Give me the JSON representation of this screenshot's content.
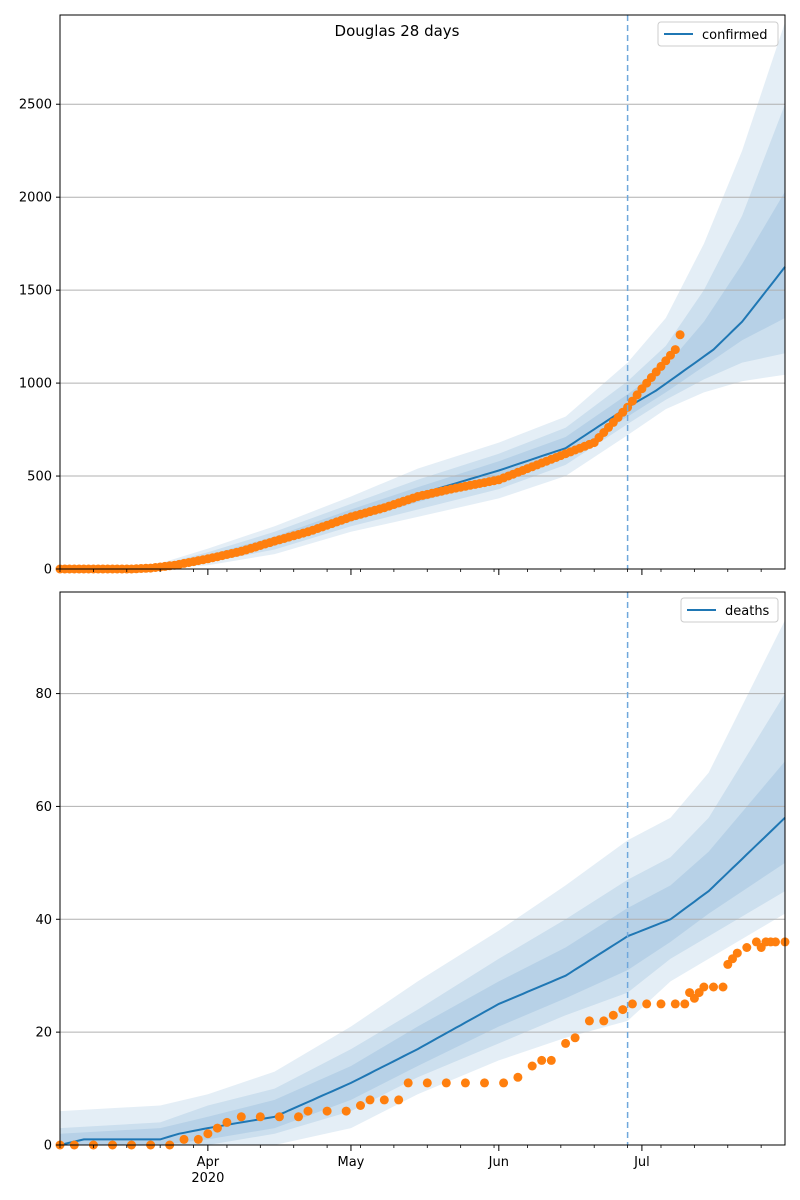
{
  "figure": {
    "title": "Douglas 28 days"
  },
  "colors": {
    "model": "#1f77b4",
    "observed": "#ff7f0e",
    "band": "#1f77b4",
    "grid": "#b0b0b0",
    "vline": "#6fa8dc"
  },
  "x_axis": {
    "start": "2020-03-01",
    "end": "2020-07-31",
    "major_ticks": [
      {
        "date": "2020-04-01",
        "label": "Apr",
        "sublabel": "2020"
      },
      {
        "date": "2020-05-01",
        "label": "May",
        "sublabel": ""
      },
      {
        "date": "2020-06-01",
        "label": "Jun",
        "sublabel": ""
      },
      {
        "date": "2020-07-01",
        "label": "Jul",
        "sublabel": ""
      }
    ],
    "forecast_start": "2020-06-28"
  },
  "chart_data": [
    {
      "type": "line",
      "panel": "top",
      "title": "Douglas 28 days",
      "legend": "confirmed",
      "legend_position": "top-right",
      "grid": "horizontal",
      "ylim": [
        0,
        2980
      ],
      "yticks": [
        0,
        500,
        1000,
        1500,
        2000,
        2500
      ],
      "model_line": [
        [
          "2020-03-01",
          0
        ],
        [
          "2020-03-15",
          2
        ],
        [
          "2020-03-22",
          15
        ],
        [
          "2020-04-01",
          60
        ],
        [
          "2020-04-15",
          150
        ],
        [
          "2020-05-01",
          290
        ],
        [
          "2020-05-15",
          400
        ],
        [
          "2020-06-01",
          530
        ],
        [
          "2020-06-15",
          650
        ],
        [
          "2020-06-28",
          870
        ],
        [
          "2020-07-04",
          960
        ],
        [
          "2020-07-10",
          1070
        ],
        [
          "2020-07-16",
          1180
        ],
        [
          "2020-07-22",
          1330
        ],
        [
          "2020-07-31",
          1625
        ]
      ],
      "bands": [
        {
          "name": "outer",
          "upper": [
            [
              "2020-03-01",
              5
            ],
            [
              "2020-03-20",
              15
            ],
            [
              "2020-04-01",
              110
            ],
            [
              "2020-04-15",
              230
            ],
            [
              "2020-05-01",
              390
            ],
            [
              "2020-05-15",
              540
            ],
            [
              "2020-06-01",
              680
            ],
            [
              "2020-06-15",
              820
            ],
            [
              "2020-06-28",
              1110
            ],
            [
              "2020-07-06",
              1350
            ],
            [
              "2020-07-14",
              1750
            ],
            [
              "2020-07-22",
              2250
            ],
            [
              "2020-07-31",
              2940
            ]
          ],
          "lower": [
            [
              "2020-03-01",
              0
            ],
            [
              "2020-03-20",
              0
            ],
            [
              "2020-04-01",
              20
            ],
            [
              "2020-04-15",
              80
            ],
            [
              "2020-05-01",
              200
            ],
            [
              "2020-05-15",
              280
            ],
            [
              "2020-06-01",
              380
            ],
            [
              "2020-06-15",
              500
            ],
            [
              "2020-06-28",
              720
            ],
            [
              "2020-07-06",
              860
            ],
            [
              "2020-07-14",
              950
            ],
            [
              "2020-07-22",
              1010
            ],
            [
              "2020-07-31",
              1045
            ]
          ]
        },
        {
          "name": "middle",
          "upper": [
            [
              "2020-03-01",
              3
            ],
            [
              "2020-03-20",
              10
            ],
            [
              "2020-04-01",
              90
            ],
            [
              "2020-04-15",
              200
            ],
            [
              "2020-05-01",
              350
            ],
            [
              "2020-05-15",
              480
            ],
            [
              "2020-06-01",
              620
            ],
            [
              "2020-06-15",
              760
            ],
            [
              "2020-06-28",
              1010
            ],
            [
              "2020-07-06",
              1200
            ],
            [
              "2020-07-14",
              1500
            ],
            [
              "2020-07-22",
              1900
            ],
            [
              "2020-07-31",
              2500
            ]
          ],
          "lower": [
            [
              "2020-03-01",
              0
            ],
            [
              "2020-03-20",
              0
            ],
            [
              "2020-04-01",
              35
            ],
            [
              "2020-04-15",
              105
            ],
            [
              "2020-05-01",
              230
            ],
            [
              "2020-05-15",
              320
            ],
            [
              "2020-06-01",
              430
            ],
            [
              "2020-06-15",
              560
            ],
            [
              "2020-06-28",
              780
            ],
            [
              "2020-07-06",
              910
            ],
            [
              "2020-07-14",
              1020
            ],
            [
              "2020-07-22",
              1110
            ],
            [
              "2020-07-31",
              1160
            ]
          ]
        },
        {
          "name": "inner",
          "upper": [
            [
              "2020-03-01",
              1
            ],
            [
              "2020-03-20",
              7
            ],
            [
              "2020-04-01",
              75
            ],
            [
              "2020-04-15",
              175
            ],
            [
              "2020-05-01",
              320
            ],
            [
              "2020-05-15",
              440
            ],
            [
              "2020-06-01",
              580
            ],
            [
              "2020-06-15",
              710
            ],
            [
              "2020-06-28",
              940
            ],
            [
              "2020-07-06",
              1090
            ],
            [
              "2020-07-14",
              1330
            ],
            [
              "2020-07-22",
              1640
            ],
            [
              "2020-07-31",
              2030
            ]
          ],
          "lower": [
            [
              "2020-03-01",
              0
            ],
            [
              "2020-03-20",
              0
            ],
            [
              "2020-04-01",
              45
            ],
            [
              "2020-04-15",
              125
            ],
            [
              "2020-05-01",
              255
            ],
            [
              "2020-05-15",
              360
            ],
            [
              "2020-06-01",
              480
            ],
            [
              "2020-06-15",
              600
            ],
            [
              "2020-06-28",
              820
            ],
            [
              "2020-07-06",
              950
            ],
            [
              "2020-07-14",
              1090
            ],
            [
              "2020-07-22",
              1230
            ],
            [
              "2020-07-31",
              1350
            ]
          ]
        }
      ],
      "observed_anchors": [
        [
          "2020-03-01",
          0
        ],
        [
          "2020-03-16",
          0
        ],
        [
          "2020-03-20",
          5
        ],
        [
          "2020-03-25",
          20
        ],
        [
          "2020-04-01",
          55
        ],
        [
          "2020-04-08",
          95
        ],
        [
          "2020-04-15",
          150
        ],
        [
          "2020-04-22",
          200
        ],
        [
          "2020-05-01",
          280
        ],
        [
          "2020-05-08",
          330
        ],
        [
          "2020-05-15",
          390
        ],
        [
          "2020-05-22",
          430
        ],
        [
          "2020-06-01",
          480
        ],
        [
          "2020-06-08",
          550
        ],
        [
          "2020-06-15",
          620
        ],
        [
          "2020-06-21",
          680
        ],
        [
          "2020-06-28",
          870
        ],
        [
          "2020-07-01",
          970
        ],
        [
          "2020-07-04",
          1060
        ],
        [
          "2020-07-08",
          1180
        ],
        [
          "2020-07-09",
          1260
        ]
      ],
      "observed_end": "2020-07-09"
    },
    {
      "type": "line",
      "panel": "bottom",
      "legend": "deaths",
      "legend_position": "top-right",
      "grid": "horizontal",
      "ylim": [
        0,
        98
      ],
      "yticks": [
        0,
        20,
        40,
        60,
        80
      ],
      "model_line": [
        [
          "2020-03-01",
          0
        ],
        [
          "2020-03-06",
          1
        ],
        [
          "2020-03-22",
          1
        ],
        [
          "2020-03-26",
          2
        ],
        [
          "2020-04-01",
          3
        ],
        [
          "2020-04-15",
          5
        ],
        [
          "2020-05-01",
          11
        ],
        [
          "2020-05-15",
          17
        ],
        [
          "2020-06-01",
          25
        ],
        [
          "2020-06-15",
          30
        ],
        [
          "2020-06-28",
          37
        ],
        [
          "2020-07-07",
          40
        ],
        [
          "2020-07-15",
          45
        ],
        [
          "2020-07-31",
          58
        ]
      ],
      "bands": [
        {
          "name": "outer",
          "upper": [
            [
              "2020-03-01",
              6
            ],
            [
              "2020-03-22",
              7
            ],
            [
              "2020-04-01",
              9
            ],
            [
              "2020-04-15",
              13
            ],
            [
              "2020-05-01",
              21
            ],
            [
              "2020-05-15",
              29
            ],
            [
              "2020-06-01",
              38
            ],
            [
              "2020-06-15",
              46
            ],
            [
              "2020-06-28",
              54
            ],
            [
              "2020-07-07",
              58
            ],
            [
              "2020-07-15",
              66
            ],
            [
              "2020-07-31",
              93
            ]
          ],
          "lower": [
            [
              "2020-03-01",
              0
            ],
            [
              "2020-03-22",
              0
            ],
            [
              "2020-04-01",
              0
            ],
            [
              "2020-04-15",
              0
            ],
            [
              "2020-05-01",
              3
            ],
            [
              "2020-05-15",
              9
            ],
            [
              "2020-06-01",
              15
            ],
            [
              "2020-06-15",
              19
            ],
            [
              "2020-06-28",
              22
            ],
            [
              "2020-07-07",
              29
            ],
            [
              "2020-07-15",
              33
            ],
            [
              "2020-07-31",
              41
            ]
          ]
        },
        {
          "name": "middle",
          "upper": [
            [
              "2020-03-01",
              3
            ],
            [
              "2020-03-22",
              4
            ],
            [
              "2020-04-01",
              7
            ],
            [
              "2020-04-15",
              10
            ],
            [
              "2020-05-01",
              17
            ],
            [
              "2020-05-15",
              24
            ],
            [
              "2020-06-01",
              33
            ],
            [
              "2020-06-15",
              40
            ],
            [
              "2020-06-28",
              47
            ],
            [
              "2020-07-07",
              51
            ],
            [
              "2020-07-15",
              58
            ],
            [
              "2020-07-31",
              80
            ]
          ],
          "lower": [
            [
              "2020-03-01",
              0
            ],
            [
              "2020-03-22",
              0
            ],
            [
              "2020-04-01",
              0
            ],
            [
              "2020-04-15",
              2
            ],
            [
              "2020-05-01",
              6
            ],
            [
              "2020-05-15",
              12
            ],
            [
              "2020-06-01",
              18
            ],
            [
              "2020-06-15",
              23
            ],
            [
              "2020-06-28",
              27
            ],
            [
              "2020-07-07",
              33
            ],
            [
              "2020-07-15",
              37
            ],
            [
              "2020-07-31",
              45
            ]
          ]
        },
        {
          "name": "inner",
          "upper": [
            [
              "2020-03-01",
              2
            ],
            [
              "2020-03-22",
              3
            ],
            [
              "2020-04-01",
              5
            ],
            [
              "2020-04-15",
              8
            ],
            [
              "2020-05-01",
              14
            ],
            [
              "2020-05-15",
              21
            ],
            [
              "2020-06-01",
              29
            ],
            [
              "2020-06-15",
              35
            ],
            [
              "2020-06-28",
              42
            ],
            [
              "2020-07-07",
              46
            ],
            [
              "2020-07-15",
              52
            ],
            [
              "2020-07-31",
              68
            ]
          ],
          "lower": [
            [
              "2020-03-01",
              0
            ],
            [
              "2020-03-22",
              0
            ],
            [
              "2020-04-01",
              1
            ],
            [
              "2020-04-15",
              3
            ],
            [
              "2020-05-01",
              8
            ],
            [
              "2020-05-15",
              14
            ],
            [
              "2020-06-01",
              21
            ],
            [
              "2020-06-15",
              26
            ],
            [
              "2020-06-28",
              31
            ],
            [
              "2020-07-07",
              36
            ],
            [
              "2020-07-15",
              41
            ],
            [
              "2020-07-31",
              50
            ]
          ]
        }
      ],
      "observed_points": [
        [
          "2020-03-01",
          0
        ],
        [
          "2020-03-04",
          0
        ],
        [
          "2020-03-08",
          0
        ],
        [
          "2020-03-12",
          0
        ],
        [
          "2020-03-16",
          0
        ],
        [
          "2020-03-20",
          0
        ],
        [
          "2020-03-24",
          0
        ],
        [
          "2020-03-27",
          1
        ],
        [
          "2020-03-30",
          1
        ],
        [
          "2020-04-01",
          2
        ],
        [
          "2020-04-03",
          3
        ],
        [
          "2020-04-05",
          4
        ],
        [
          "2020-04-08",
          5
        ],
        [
          "2020-04-12",
          5
        ],
        [
          "2020-04-16",
          5
        ],
        [
          "2020-04-20",
          5
        ],
        [
          "2020-04-22",
          6
        ],
        [
          "2020-04-26",
          6
        ],
        [
          "2020-04-30",
          6
        ],
        [
          "2020-05-03",
          7
        ],
        [
          "2020-05-05",
          8
        ],
        [
          "2020-05-08",
          8
        ],
        [
          "2020-05-11",
          8
        ],
        [
          "2020-05-13",
          11
        ],
        [
          "2020-05-17",
          11
        ],
        [
          "2020-05-21",
          11
        ],
        [
          "2020-05-25",
          11
        ],
        [
          "2020-05-29",
          11
        ],
        [
          "2020-06-02",
          11
        ],
        [
          "2020-06-05",
          12
        ],
        [
          "2020-06-08",
          14
        ],
        [
          "2020-06-10",
          15
        ],
        [
          "2020-06-12",
          15
        ],
        [
          "2020-06-15",
          18
        ],
        [
          "2020-06-17",
          19
        ],
        [
          "2020-06-20",
          22
        ],
        [
          "2020-06-23",
          22
        ],
        [
          "2020-06-25",
          23
        ],
        [
          "2020-06-27",
          24
        ],
        [
          "2020-06-29",
          25
        ],
        [
          "2020-07-02",
          25
        ],
        [
          "2020-07-05",
          25
        ],
        [
          "2020-07-08",
          25
        ],
        [
          "2020-07-10",
          25
        ],
        [
          "2020-07-11",
          27
        ],
        [
          "2020-07-12",
          26
        ],
        [
          "2020-07-13",
          27
        ],
        [
          "2020-07-14",
          28
        ],
        [
          "2020-07-16",
          28
        ],
        [
          "2020-07-18",
          28
        ],
        [
          "2020-07-19",
          32
        ],
        [
          "2020-07-20",
          33
        ],
        [
          "2020-07-21",
          34
        ],
        [
          "2020-07-23",
          35
        ],
        [
          "2020-07-25",
          36
        ],
        [
          "2020-07-26",
          35
        ],
        [
          "2020-07-27",
          36
        ],
        [
          "2020-07-28",
          36
        ],
        [
          "2020-07-29",
          36
        ],
        [
          "2020-07-31",
          36
        ]
      ]
    }
  ]
}
